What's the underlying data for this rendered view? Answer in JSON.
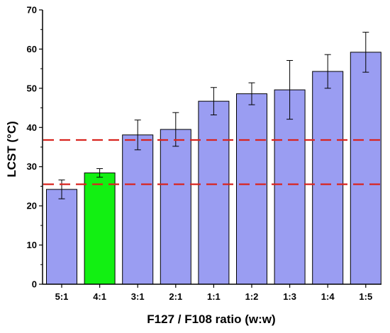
{
  "chart_data": {
    "type": "bar",
    "title": "",
    "xlabel": "F127 / F108 ratio (w:w)",
    "ylabel": "LCST (°C)",
    "ylim": [
      0,
      70
    ],
    "yticks": [
      0,
      10,
      20,
      30,
      40,
      50,
      60,
      70
    ],
    "categories": [
      "5:1",
      "4:1",
      "3:1",
      "2:1",
      "1:1",
      "1:2",
      "1:3",
      "1:4",
      "1:5"
    ],
    "values": [
      24.2,
      28.4,
      38.1,
      39.5,
      46.7,
      48.6,
      49.6,
      54.3,
      59.2
    ],
    "errors": [
      2.4,
      1.1,
      3.8,
      4.3,
      3.5,
      2.8,
      7.5,
      4.3,
      5.1
    ],
    "highlight_index": 1,
    "reference_lines": [
      36.8,
      25.5
    ],
    "colors": {
      "bar": "#9a9df2",
      "bar_highlight": "#12f012",
      "bar_border": "#000000",
      "reference_line": "#d9241f"
    },
    "grid": false,
    "legend": "none"
  }
}
